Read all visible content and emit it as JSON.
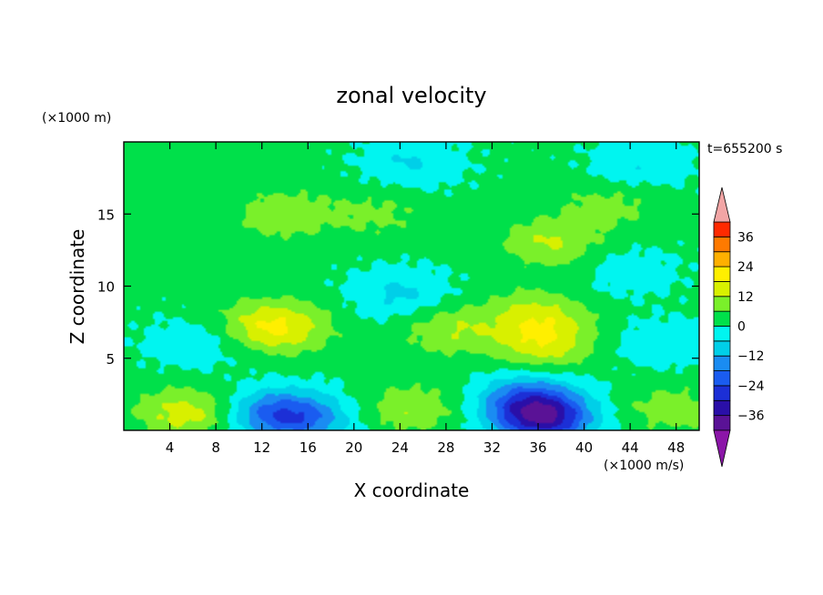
{
  "chart_data": {
    "type": "heatmap",
    "title": "zonal velocity",
    "xlabel": "X coordinate",
    "ylabel": "Z coordinate",
    "x_unit": "(×1000 m/s)",
    "y_unit": "(×1000 m)",
    "time_label": "t=655200 s",
    "xlim": [
      0,
      50
    ],
    "ylim": [
      0,
      20
    ],
    "x_ticks": [
      4,
      8,
      12,
      16,
      20,
      24,
      28,
      32,
      36,
      40,
      44,
      48
    ],
    "y_ticks": [
      5,
      10,
      15
    ],
    "colorbar": {
      "levels": [
        -42,
        -36,
        -30,
        -24,
        -18,
        -12,
        -6,
        0,
        6,
        12,
        18,
        24,
        30,
        36,
        42
      ],
      "colors": [
        "#5a1296",
        "#2a0fa8",
        "#1c2fd6",
        "#1a5cf0",
        "#1a8cf2",
        "#00cfe8",
        "#00f5f0",
        "#00e04a",
        "#7af02a",
        "#d8f000",
        "#ffef00",
        "#ffb000",
        "#ff7a00",
        "#ff2a00"
      ],
      "tick_labels": [
        "36",
        "24",
        "12",
        "0",
        "−12",
        "−24",
        "−36"
      ],
      "extend_colors": {
        "low": "#8b16a8",
        "high": "#f2a5a5"
      }
    },
    "features": [
      {
        "x": 12,
        "z": 7.5,
        "value": 8
      },
      {
        "x": 14,
        "z": 7,
        "value": 12
      },
      {
        "x": 28.5,
        "z": 7,
        "value": 10
      },
      {
        "x": 36,
        "z": 8,
        "value": 12
      },
      {
        "x": 36.5,
        "z": 6,
        "value": 14
      },
      {
        "x": 24,
        "z": 9.5,
        "value": -9
      },
      {
        "x": 6,
        "z": 6,
        "value": -6
      },
      {
        "x": 47,
        "z": 6,
        "value": -6
      },
      {
        "x": 13,
        "z": 1.2,
        "value": -18
      },
      {
        "x": 16,
        "z": 0.8,
        "value": -14
      },
      {
        "x": 36.5,
        "z": 0.8,
        "value": -33
      },
      {
        "x": 35,
        "z": 2.2,
        "value": -18
      },
      {
        "x": 5.5,
        "z": 1.2,
        "value": 14
      },
      {
        "x": 25,
        "z": 1.5,
        "value": 10
      },
      {
        "x": 47.5,
        "z": 1.5,
        "value": 8
      },
      {
        "x": 14,
        "z": 15,
        "value": 9
      },
      {
        "x": 22,
        "z": 15,
        "value": 6
      },
      {
        "x": 37,
        "z": 13,
        "value": 11
      },
      {
        "x": 42,
        "z": 15.5,
        "value": 7
      },
      {
        "x": 25,
        "z": 18.5,
        "value": -8
      },
      {
        "x": 45,
        "z": 18.5,
        "value": -7
      },
      {
        "x": 44,
        "z": 11,
        "value": -5
      }
    ]
  }
}
